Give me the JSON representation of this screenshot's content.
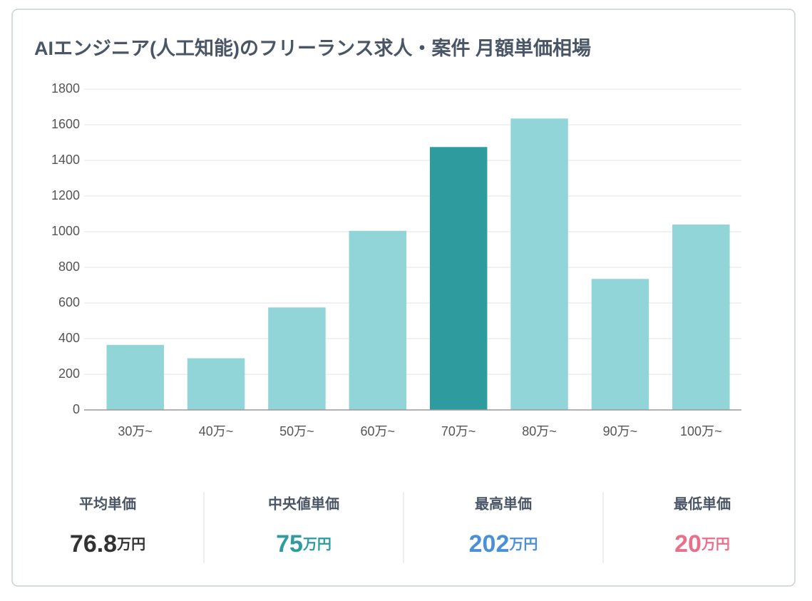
{
  "chart_data": {
    "type": "bar",
    "title": "AIエンジニア(人工知能)のフリーランス求人・案件 月額単価相場",
    "categories": [
      "30万~",
      "40万~",
      "50万~",
      "60万~",
      "70万~",
      "80万~",
      "90万~",
      "100万~"
    ],
    "values": [
      365,
      290,
      575,
      1005,
      1475,
      1635,
      735,
      1040
    ],
    "colors": [
      "#91d5d9",
      "#91d5d9",
      "#91d5d9",
      "#91d5d9",
      "#2e9c9f",
      "#91d5d9",
      "#91d5d9",
      "#91d5d9"
    ],
    "ylim": [
      0,
      1800
    ],
    "yticks": [
      0,
      200,
      400,
      600,
      800,
      1000,
      1200,
      1400,
      1600,
      1800
    ],
    "grid": true
  },
  "stats": [
    {
      "label": "平均単価",
      "value": 76.8,
      "unit": "万円",
      "color": "#333333"
    },
    {
      "label": "中央値単価",
      "value": 75,
      "unit": "万円",
      "color": "#2e9c9f"
    },
    {
      "label": "最高単価",
      "value": 202,
      "unit": "万円",
      "color": "#4a90d9"
    },
    {
      "label": "最低単価",
      "value": 20,
      "unit": "万円",
      "color": "#e8708a"
    }
  ]
}
